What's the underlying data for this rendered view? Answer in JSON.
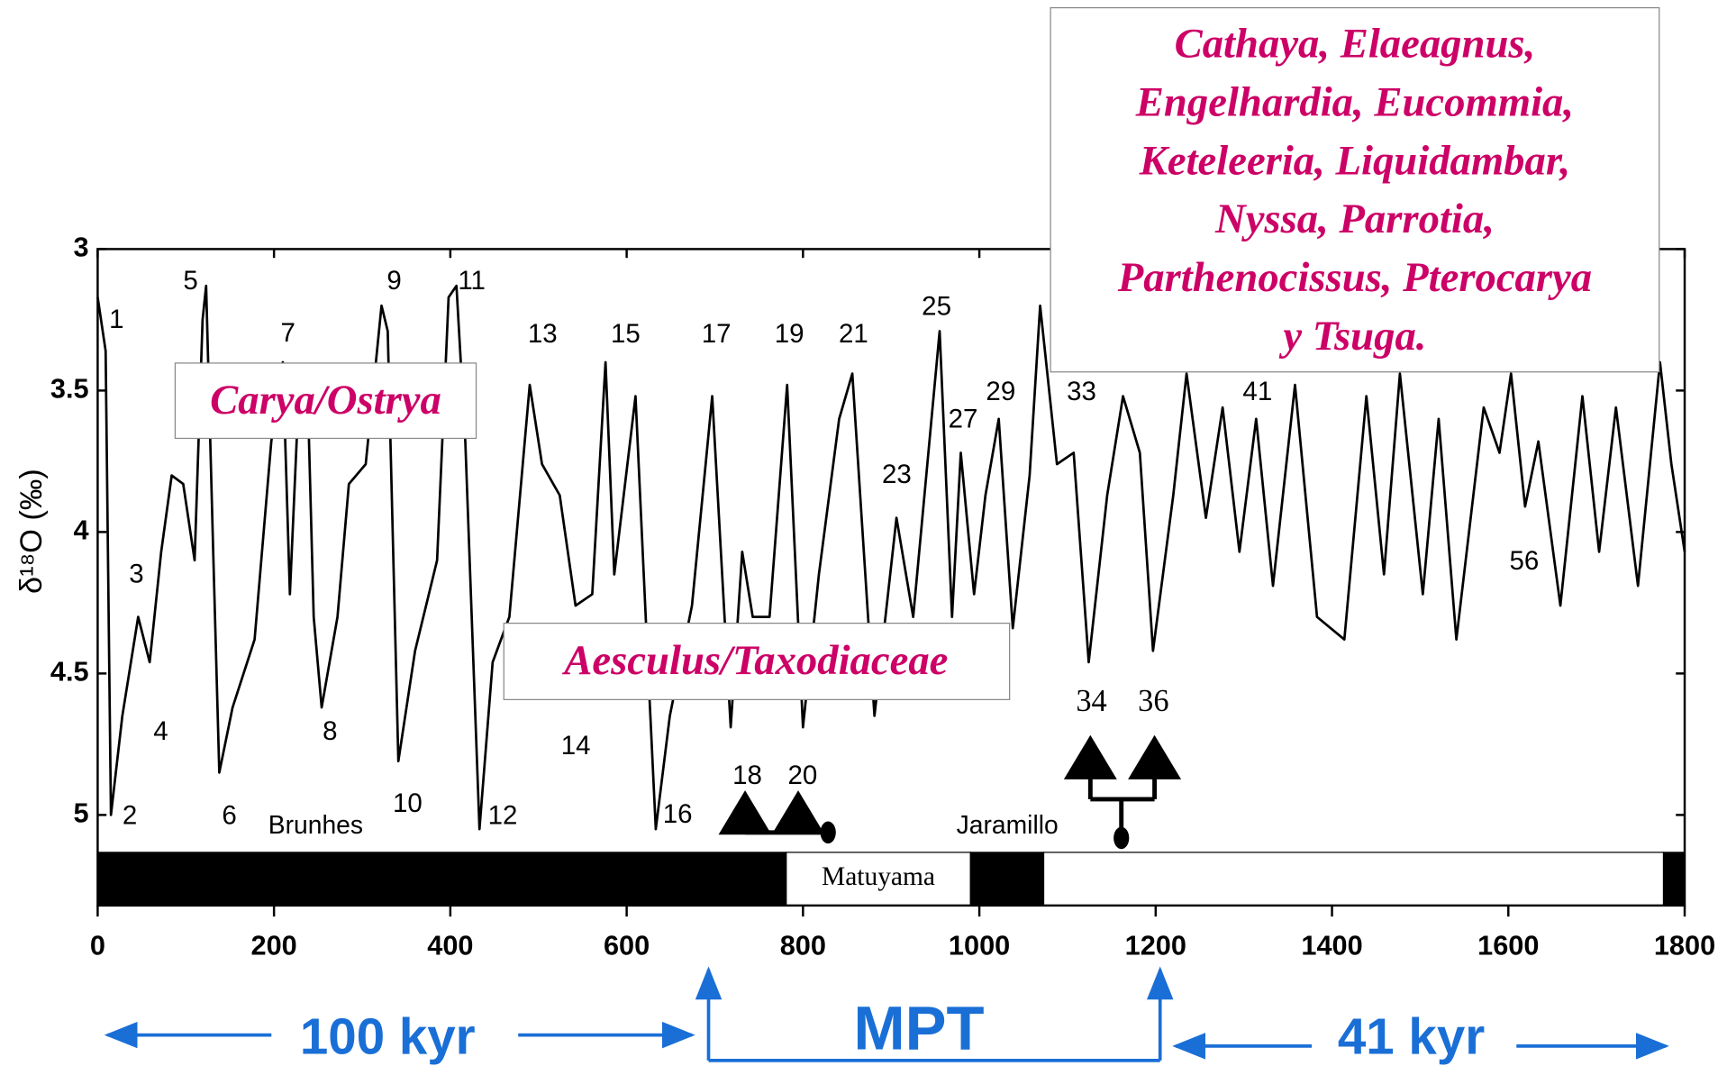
{
  "chart_data": {
    "type": "line",
    "ylabel": "δ¹⁸O (‰)",
    "x": [
      0,
      9,
      15,
      28,
      46,
      59,
      72,
      84,
      97,
      110,
      119,
      123,
      131,
      138,
      153,
      178,
      197,
      210,
      218,
      228,
      238,
      245,
      254,
      272,
      285,
      304,
      322,
      329,
      341,
      360,
      385,
      398,
      407,
      417,
      433,
      448,
      467,
      490,
      504,
      524,
      542,
      561,
      576,
      586,
      610,
      624,
      633,
      649,
      674,
      697,
      718,
      731,
      743,
      762,
      782,
      800,
      818,
      841,
      856,
      881,
      906,
      925,
      955,
      969,
      979,
      994,
      1007,
      1022,
      1038,
      1057,
      1069,
      1088,
      1107,
      1124,
      1145,
      1163,
      1182,
      1197,
      1220,
      1235,
      1257,
      1276,
      1295,
      1314,
      1333,
      1358,
      1383,
      1414,
      1439,
      1459,
      1477,
      1503,
      1521,
      1541,
      1572,
      1590,
      1603,
      1619,
      1634,
      1659,
      1684,
      1703,
      1722,
      1747,
      1772,
      1785,
      1800
    ],
    "values": [
      3.17,
      3.36,
      5.0,
      4.65,
      4.3,
      4.46,
      4.07,
      3.8,
      3.83,
      4.1,
      3.25,
      3.13,
      4.07,
      4.85,
      4.62,
      4.38,
      3.68,
      3.4,
      4.22,
      3.52,
      3.48,
      4.3,
      4.62,
      4.3,
      3.83,
      3.76,
      3.2,
      3.29,
      4.81,
      4.42,
      4.1,
      3.17,
      3.13,
      3.68,
      5.05,
      4.46,
      4.3,
      3.48,
      3.76,
      3.87,
      4.26,
      4.22,
      3.4,
      4.15,
      3.52,
      4.46,
      5.05,
      4.65,
      4.26,
      3.52,
      4.69,
      4.07,
      4.3,
      4.3,
      3.48,
      4.69,
      4.15,
      3.6,
      3.44,
      4.65,
      3.95,
      4.3,
      3.29,
      4.3,
      3.72,
      4.22,
      3.87,
      3.6,
      4.34,
      3.8,
      3.2,
      3.76,
      3.72,
      4.46,
      3.87,
      3.52,
      3.72,
      4.42,
      3.87,
      3.44,
      3.95,
      3.56,
      4.07,
      3.6,
      4.19,
      3.48,
      4.3,
      4.38,
      3.52,
      4.15,
      3.44,
      4.22,
      3.6,
      4.38,
      3.56,
      3.72,
      3.44,
      3.91,
      3.68,
      4.26,
      3.52,
      4.07,
      3.56,
      4.19,
      3.4,
      3.76,
      4.07
    ],
    "color": "#000000",
    "xlim": [
      0,
      1800
    ],
    "xticks": [
      0,
      200,
      400,
      600,
      800,
      1000,
      1200,
      1400,
      1600,
      1800
    ],
    "ylim": [
      3,
      5.32
    ],
    "y_inverted": true,
    "yticks": [
      3,
      3.5,
      4,
      4.5,
      5
    ],
    "grid": false,
    "polarity": [
      {
        "start": 0,
        "end": 781,
        "color": "#000000"
      },
      {
        "start": 781,
        "end": 990,
        "color": "#ffffff",
        "label": "Matuyama"
      },
      {
        "start": 990,
        "end": 1073,
        "color": "#000000"
      },
      {
        "start": 1073,
        "end": 1776,
        "color": "#ffffff"
      },
      {
        "start": 1776,
        "end": 1800,
        "color": "#000000"
      }
    ],
    "stages": [
      "1",
      "2",
      "3",
      "4",
      "5",
      "6",
      "7",
      "8",
      "9",
      "10",
      "11",
      "12",
      "13",
      "14",
      "15",
      "16",
      "17",
      "19",
      "21",
      "23",
      "25",
      "27",
      "29",
      "33",
      "41",
      "56"
    ],
    "chrons": [
      "Brunhes",
      "Jaramillo"
    ],
    "brackets": [
      "18",
      "20",
      "34",
      "36"
    ],
    "boxes": [
      "Carya/Ostrya",
      "Aesculus/Taxodiaceae"
    ],
    "taxa_box": [
      "Cathaya, Elaeagnus,",
      "Engelhardia, Eucommia,",
      "Keteleeria, Liquidambar,",
      "Nyssa, Parrotia,",
      "Parthenocissus, Pterocarya",
      "y Tsuga."
    ],
    "regimes": [
      "100 kyr",
      "MPT",
      "41 kyr"
    ]
  }
}
